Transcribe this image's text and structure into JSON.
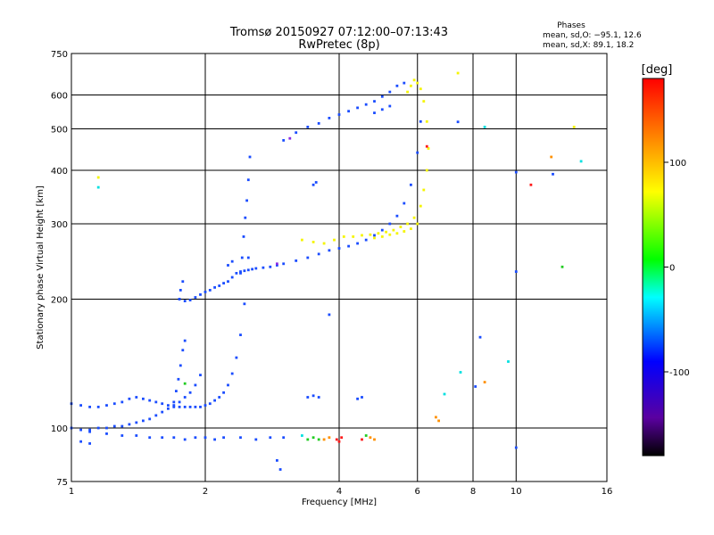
{
  "chart_data": {
    "type": "scatter",
    "title": "Tromsø 20150927 07:12:00–07:13:43",
    "subtitle": "RwPretec (8p)",
    "xlabel": "Frequency [MHz]",
    "ylabel": "Stationary phase Virtual Height [km]",
    "x_scale": "log",
    "y_scale": "log",
    "xlim": [
      1,
      16
    ],
    "ylim": [
      75,
      750
    ],
    "x_ticks": [
      1,
      2,
      4,
      6,
      8,
      10,
      16
    ],
    "y_ticks": [
      75,
      100,
      200,
      300,
      400,
      500,
      600,
      750
    ],
    "grid": true,
    "stats": {
      "heading": "Phases",
      "line_o": "mean, sd,O: −95.1, 12.6",
      "line_x": "mean, sd,X:  89.1, 18.2"
    },
    "colorbar": {
      "label": "[deg]",
      "range": [
        -180,
        180
      ],
      "ticks": [
        100,
        0,
        -100
      ]
    },
    "series": [
      {
        "color": "#1a4cff",
        "points": [
          [
            1.0,
            100
          ],
          [
            1.05,
            99
          ],
          [
            1.1,
            99
          ],
          [
            1.15,
            100
          ],
          [
            1.2,
            100
          ],
          [
            1.25,
            101
          ],
          [
            1.3,
            101
          ],
          [
            1.35,
            102
          ],
          [
            1.4,
            103
          ],
          [
            1.45,
            104
          ],
          [
            1.5,
            105
          ],
          [
            1.55,
            107
          ],
          [
            1.6,
            109
          ],
          [
            1.65,
            111
          ],
          [
            1.7,
            113
          ],
          [
            1.75,
            115
          ],
          [
            1.8,
            118
          ],
          [
            1.85,
            121
          ],
          [
            1.9,
            126
          ],
          [
            1.95,
            133
          ],
          [
            1.0,
            114
          ],
          [
            1.05,
            113
          ],
          [
            1.1,
            112
          ],
          [
            1.15,
            112
          ],
          [
            1.2,
            113
          ],
          [
            1.25,
            114
          ],
          [
            1.3,
            115
          ],
          [
            1.35,
            117
          ],
          [
            1.4,
            118
          ],
          [
            1.45,
            117
          ],
          [
            1.5,
            116
          ],
          [
            1.55,
            115
          ],
          [
            1.6,
            114
          ],
          [
            1.65,
            113
          ],
          [
            1.7,
            112
          ],
          [
            1.75,
            112
          ],
          [
            1.8,
            112
          ],
          [
            1.85,
            112
          ],
          [
            1.9,
            112
          ],
          [
            1.95,
            112
          ],
          [
            2.0,
            113
          ],
          [
            2.05,
            114
          ],
          [
            2.1,
            116
          ],
          [
            2.15,
            118
          ],
          [
            2.2,
            121
          ],
          [
            2.25,
            126
          ],
          [
            2.3,
            134
          ],
          [
            2.35,
            146
          ],
          [
            2.4,
            165
          ],
          [
            2.45,
            195
          ],
          [
            2.5,
            250
          ],
          [
            1.7,
            115
          ],
          [
            1.72,
            122
          ],
          [
            1.74,
            130
          ],
          [
            1.76,
            140
          ],
          [
            1.78,
            152
          ],
          [
            1.8,
            160
          ],
          [
            1.75,
            200
          ],
          [
            1.8,
            198
          ],
          [
            1.85,
            199
          ],
          [
            1.9,
            202
          ],
          [
            1.95,
            205
          ],
          [
            2.0,
            208
          ],
          [
            2.05,
            210
          ],
          [
            2.1,
            213
          ],
          [
            2.15,
            215
          ],
          [
            2.2,
            218
          ],
          [
            2.25,
            220
          ],
          [
            2.3,
            225
          ],
          [
            2.35,
            230
          ],
          [
            2.4,
            232
          ],
          [
            2.45,
            233
          ],
          [
            2.5,
            234
          ],
          [
            2.55,
            235
          ],
          [
            2.6,
            236
          ],
          [
            2.7,
            237
          ],
          [
            2.8,
            238
          ],
          [
            2.9,
            240
          ],
          [
            3.0,
            242
          ],
          [
            3.2,
            246
          ],
          [
            3.4,
            250
          ],
          [
            3.6,
            255
          ],
          [
            3.8,
            260
          ],
          [
            4.0,
            263
          ],
          [
            4.2,
            266
          ],
          [
            4.4,
            270
          ],
          [
            4.6,
            275
          ],
          [
            4.8,
            282
          ],
          [
            5.0,
            290
          ],
          [
            5.2,
            300
          ],
          [
            5.4,
            313
          ],
          [
            5.6,
            335
          ],
          [
            5.8,
            370
          ],
          [
            6.0,
            440
          ],
          [
            6.1,
            520
          ],
          [
            2.4,
            230
          ],
          [
            2.42,
            250
          ],
          [
            2.44,
            280
          ],
          [
            2.46,
            310
          ],
          [
            2.48,
            340
          ],
          [
            2.5,
            380
          ],
          [
            2.52,
            430
          ],
          [
            2.25,
            240
          ],
          [
            2.3,
            245
          ],
          [
            1.75,
            200
          ],
          [
            1.76,
            210
          ],
          [
            1.78,
            220
          ],
          [
            3.0,
            470
          ],
          [
            3.2,
            490
          ],
          [
            3.4,
            505
          ],
          [
            3.6,
            515
          ],
          [
            3.8,
            530
          ],
          [
            4.0,
            540
          ],
          [
            4.2,
            550
          ],
          [
            4.4,
            560
          ],
          [
            4.6,
            570
          ],
          [
            4.8,
            580
          ],
          [
            5.0,
            595
          ],
          [
            5.2,
            610
          ],
          [
            5.4,
            630
          ],
          [
            5.6,
            640
          ],
          [
            4.8,
            545
          ],
          [
            5.0,
            555
          ],
          [
            5.2,
            565
          ],
          [
            3.5,
            370
          ],
          [
            3.55,
            375
          ],
          [
            1.1,
            98
          ],
          [
            1.2,
            97
          ],
          [
            1.3,
            96
          ],
          [
            1.4,
            96
          ],
          [
            1.5,
            95
          ],
          [
            1.6,
            95
          ],
          [
            1.7,
            95
          ],
          [
            1.8,
            94
          ],
          [
            1.9,
            95
          ],
          [
            2.0,
            95
          ],
          [
            2.1,
            94
          ],
          [
            2.2,
            95
          ],
          [
            2.4,
            95
          ],
          [
            2.6,
            94
          ],
          [
            2.8,
            95
          ],
          [
            3.0,
            95
          ],
          [
            1.1,
            92
          ],
          [
            1.05,
            93
          ],
          [
            2.9,
            84
          ],
          [
            2.95,
            80
          ],
          [
            3.4,
            118
          ],
          [
            3.5,
            119
          ],
          [
            3.6,
            118
          ],
          [
            4.4,
            117
          ],
          [
            4.5,
            118
          ],
          [
            3.8,
            184
          ],
          [
            8.1,
            125
          ],
          [
            8.3,
            163
          ],
          [
            10,
            90
          ],
          [
            10,
            232
          ],
          [
            10,
            396
          ],
          [
            7.4,
            519
          ],
          [
            12.1,
            392
          ]
        ]
      },
      {
        "color": "#f5f500",
        "points": [
          [
            3.3,
            275
          ],
          [
            3.5,
            272
          ],
          [
            3.7,
            270
          ],
          [
            3.9,
            275
          ],
          [
            4.1,
            280
          ],
          [
            4.3,
            280
          ],
          [
            4.5,
            282
          ],
          [
            4.7,
            283
          ],
          [
            4.9,
            285
          ],
          [
            5.1,
            287
          ],
          [
            5.3,
            290
          ],
          [
            5.5,
            295
          ],
          [
            5.7,
            300
          ],
          [
            5.9,
            310
          ],
          [
            6.1,
            330
          ],
          [
            6.2,
            360
          ],
          [
            6.3,
            400
          ],
          [
            6.35,
            450
          ],
          [
            6.3,
            520
          ],
          [
            6.2,
            580
          ],
          [
            6.1,
            620
          ],
          [
            6.0,
            640
          ],
          [
            5.9,
            650
          ],
          [
            5.8,
            630
          ],
          [
            5.7,
            610
          ],
          [
            4.8,
            278
          ],
          [
            5.0,
            280
          ],
          [
            5.2,
            283
          ],
          [
            5.4,
            285
          ],
          [
            5.6,
            288
          ],
          [
            5.8,
            292
          ],
          [
            6.0,
            300
          ],
          [
            7.4,
            675
          ],
          [
            13.5,
            505
          ],
          [
            1.15,
            385
          ]
        ]
      },
      {
        "color": "#ff9000",
        "points": [
          [
            3.7,
            94
          ],
          [
            3.8,
            95
          ],
          [
            4.7,
            95
          ],
          [
            4.8,
            94
          ],
          [
            6.6,
            106
          ],
          [
            6.7,
            104
          ],
          [
            8.5,
            128
          ],
          [
            12.0,
            430
          ]
        ]
      },
      {
        "color": "#ff1a1a",
        "points": [
          [
            3.95,
            94
          ],
          [
            4.0,
            93
          ],
          [
            4.05,
            95
          ],
          [
            4.5,
            94
          ],
          [
            6.3,
            455
          ],
          [
            10.8,
            370
          ]
        ]
      },
      {
        "color": "#22cc22",
        "points": [
          [
            3.5,
            95
          ],
          [
            3.6,
            94
          ],
          [
            3.4,
            94
          ],
          [
            4.6,
            96
          ],
          [
            12.7,
            238
          ],
          [
            1.8,
            127
          ]
        ]
      },
      {
        "color": "#00e0e0",
        "points": [
          [
            1.15,
            365
          ],
          [
            6.9,
            120
          ],
          [
            7.5,
            135
          ],
          [
            8.5,
            505
          ],
          [
            9.6,
            143
          ],
          [
            14.0,
            420
          ],
          [
            3.3,
            96
          ]
        ]
      },
      {
        "color": "#8a2be2",
        "points": [
          [
            2.9,
            242
          ],
          [
            3.1,
            475
          ]
        ]
      }
    ]
  }
}
